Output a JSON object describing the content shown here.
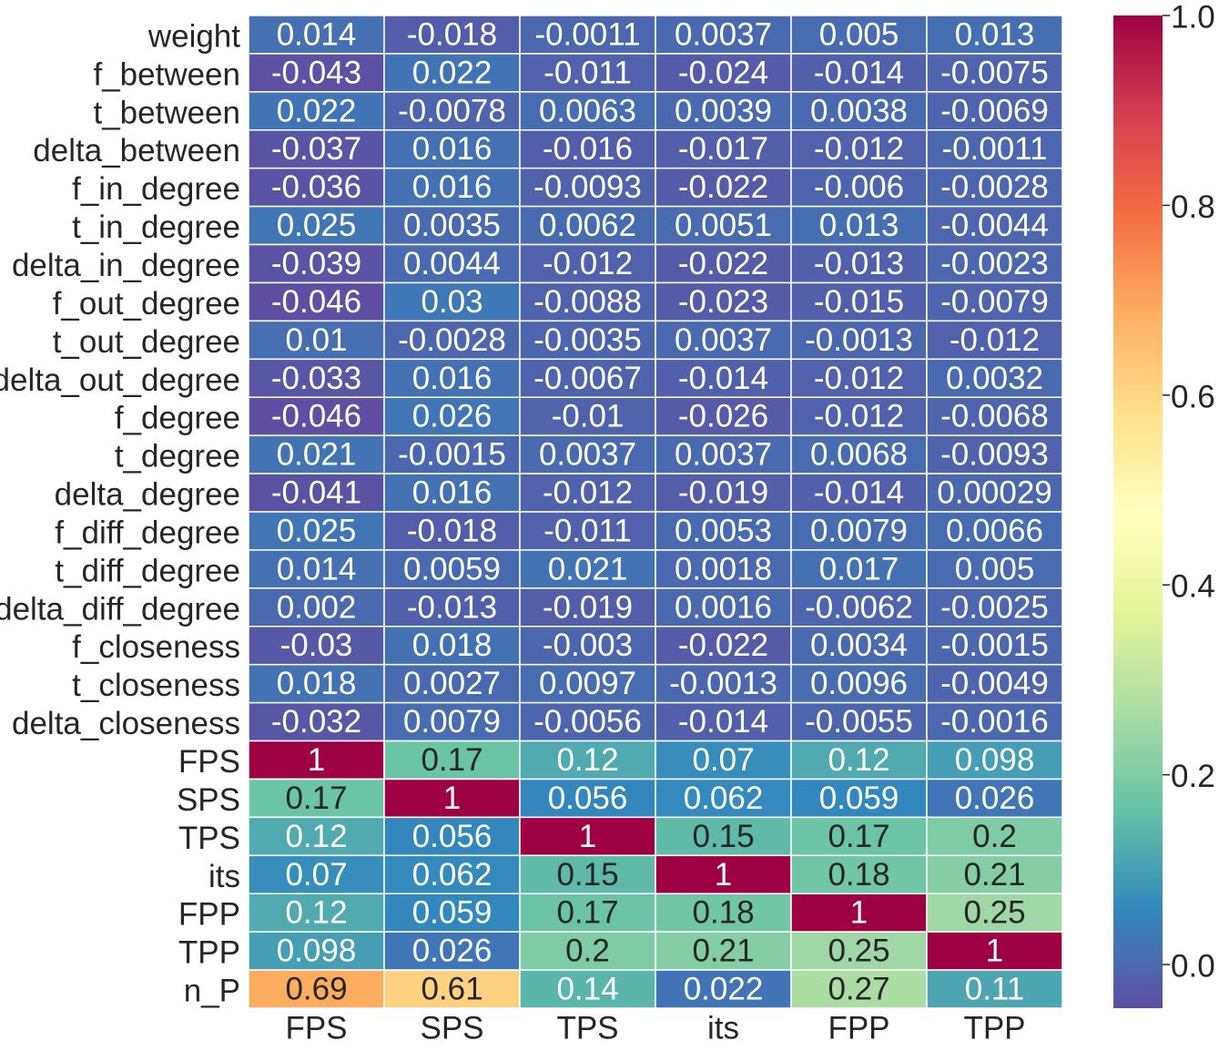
{
  "chart_data": {
    "type": "heatmap",
    "title": "",
    "xlabel": "",
    "ylabel": "",
    "columns": [
      "FPS",
      "SPS",
      "TPS",
      "its",
      "FPP",
      "TPP"
    ],
    "rows": [
      "weight",
      "f_between",
      "t_between",
      "delta_between",
      "f_in_degree",
      "t_in_degree",
      "delta_in_degree",
      "f_out_degree",
      "t_out_degree",
      "delta_out_degree",
      "f_degree",
      "t_degree",
      "delta_degree",
      "f_diff_degree",
      "t_diff_degree",
      "delta_diff_degree",
      "f_closeness",
      "t_closeness",
      "delta_closeness",
      "FPS",
      "SPS",
      "TPS",
      "its",
      "FPP",
      "TPP",
      "n_P"
    ],
    "values": [
      [
        0.014,
        -0.018,
        -0.0011,
        0.0037,
        0.005,
        0.013
      ],
      [
        -0.043,
        0.022,
        -0.011,
        -0.024,
        -0.014,
        -0.0075
      ],
      [
        0.022,
        -0.0078,
        0.0063,
        0.0039,
        0.0038,
        -0.0069
      ],
      [
        -0.037,
        0.016,
        -0.016,
        -0.017,
        -0.012,
        -0.0011
      ],
      [
        -0.036,
        0.016,
        -0.0093,
        -0.022,
        -0.006,
        -0.0028
      ],
      [
        0.025,
        0.0035,
        0.0062,
        0.0051,
        0.013,
        -0.0044
      ],
      [
        -0.039,
        0.0044,
        -0.012,
        -0.022,
        -0.013,
        -0.0023
      ],
      [
        -0.046,
        0.03,
        -0.0088,
        -0.023,
        -0.015,
        -0.0079
      ],
      [
        0.01,
        -0.0028,
        -0.0035,
        0.0037,
        -0.0013,
        -0.012
      ],
      [
        -0.033,
        0.016,
        -0.0067,
        -0.014,
        -0.012,
        0.0032
      ],
      [
        -0.046,
        0.026,
        -0.01,
        -0.026,
        -0.012,
        -0.0068
      ],
      [
        0.021,
        -0.0015,
        0.0037,
        0.0037,
        0.0068,
        -0.0093
      ],
      [
        -0.041,
        0.016,
        -0.012,
        -0.019,
        -0.014,
        0.00029
      ],
      [
        0.025,
        -0.018,
        -0.011,
        0.0053,
        0.0079,
        0.0066
      ],
      [
        0.014,
        0.0059,
        0.021,
        0.0018,
        0.017,
        0.005
      ],
      [
        0.002,
        -0.013,
        -0.019,
        0.0016,
        -0.0062,
        -0.0025
      ],
      [
        -0.03,
        0.018,
        -0.003,
        -0.022,
        0.0034,
        -0.0015
      ],
      [
        0.018,
        0.0027,
        0.0097,
        -0.0013,
        0.0096,
        -0.0049
      ],
      [
        -0.032,
        0.0079,
        -0.0056,
        -0.014,
        -0.0055,
        -0.0016
      ],
      [
        1,
        0.17,
        0.12,
        0.07,
        0.12,
        0.098
      ],
      [
        0.17,
        1,
        0.056,
        0.062,
        0.059,
        0.026
      ],
      [
        0.12,
        0.056,
        1,
        0.15,
        0.17,
        0.2
      ],
      [
        0.07,
        0.062,
        0.15,
        1,
        0.18,
        0.21
      ],
      [
        0.12,
        0.059,
        0.17,
        0.18,
        1,
        0.25
      ],
      [
        0.098,
        0.026,
        0.2,
        0.21,
        0.25,
        1
      ],
      [
        0.69,
        0.61,
        0.14,
        0.022,
        0.27,
        0.11
      ]
    ],
    "colormap": "Spectral_r",
    "colormap_stops": [
      "#5e4fa2",
      "#3288bd",
      "#66c2a5",
      "#abdda4",
      "#e6f598",
      "#ffffbf",
      "#fee08b",
      "#fdae61",
      "#f46d43",
      "#d53e4f",
      "#9e0142"
    ],
    "vmin": -0.046,
    "vmax": 1.0,
    "cell_border_color": "#ffffff",
    "colorbar": {
      "ticks": [
        0.0,
        0.2,
        0.4,
        0.6,
        0.8,
        1.0
      ],
      "tick_labels": [
        "0.0",
        "0.2",
        "0.4",
        "0.6",
        "0.8",
        "1.0"
      ],
      "position": "right"
    }
  }
}
